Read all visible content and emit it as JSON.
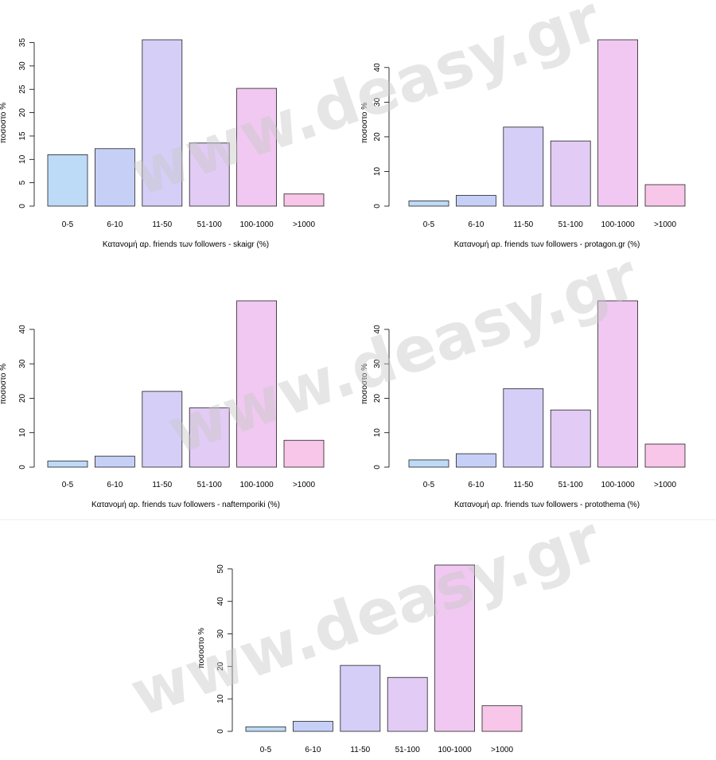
{
  "watermark": "www.deasy.gr",
  "colors": [
    "#bddaf7",
    "#c6d0f7",
    "#d5cef7",
    "#e2cbf5",
    "#f1c8f1",
    "#f8c6e8"
  ],
  "chart_data": [
    {
      "type": "bar",
      "categories": [
        "0-5",
        "6-10",
        "11-50",
        "51-100",
        "100-1000",
        ">1000"
      ],
      "values": [
        11,
        12.3,
        35.6,
        13.5,
        25.2,
        2.6
      ],
      "ylabel": "ποσοστο %",
      "xlabel": "Κατανομή αρ. friends των followers  - skaigr (%)",
      "yticks": [
        0,
        5,
        10,
        15,
        20,
        25,
        30,
        35
      ],
      "ylim": [
        0,
        35.6
      ]
    },
    {
      "type": "bar",
      "categories": [
        "0-5",
        "6-10",
        "11-50",
        "51-100",
        "100-1000",
        ">1000"
      ],
      "values": [
        1.5,
        3.1,
        22.8,
        18.8,
        48,
        6.2
      ],
      "ylabel": "ποσοστο %",
      "xlabel": "Κατανομή αρ. friends των followers - protagon.gr (%)",
      "yticks": [
        0,
        10,
        20,
        30,
        40
      ],
      "ylim": [
        0,
        48
      ]
    },
    {
      "type": "bar",
      "categories": [
        "0-5",
        "6-10",
        "11-50",
        "51-100",
        "100-1000",
        ">1000"
      ],
      "values": [
        1.8,
        3.2,
        22,
        17.2,
        48.3,
        7.8
      ],
      "ylabel": "ποσοστο %",
      "xlabel": "Κατανομή αρ. friends των followers  - naftemporiki (%)",
      "yticks": [
        0,
        10,
        20,
        30,
        40
      ],
      "ylim": [
        0,
        48.3
      ]
    },
    {
      "type": "bar",
      "categories": [
        "0-5",
        "6-10",
        "11-50",
        "51-100",
        "100-1000",
        ">1000"
      ],
      "values": [
        2.1,
        3.9,
        22.8,
        16.6,
        48.3,
        6.7
      ],
      "ylabel": "ποσοστο %",
      "xlabel": "Κατανομή αρ. friends των followers  - protothema (%)",
      "yticks": [
        0,
        10,
        20,
        30,
        40
      ],
      "ylim": [
        0,
        48.3
      ]
    },
    {
      "type": "bar",
      "categories": [
        "0-5",
        "6-10",
        "11-50",
        "51-100",
        "100-1000",
        ">1000"
      ],
      "values": [
        1.4,
        3.1,
        20.3,
        16.6,
        51.2,
        7.9
      ],
      "ylabel": "ποσοστο %",
      "xlabel": "",
      "yticks": [
        0,
        10,
        20,
        30,
        40,
        50
      ],
      "ylim": [
        0,
        51.2
      ]
    }
  ]
}
